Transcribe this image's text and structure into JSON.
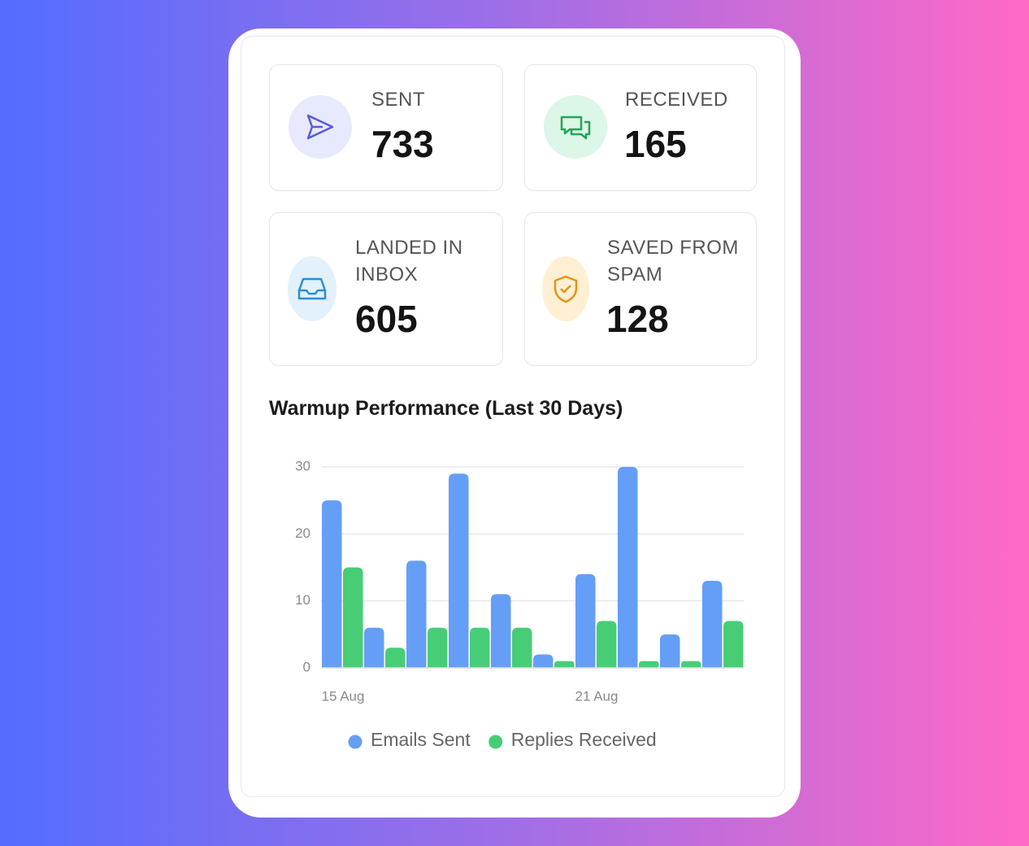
{
  "stats": [
    {
      "label": "SENT",
      "value": 733
    },
    {
      "label": "RECEIVED",
      "value": 165
    },
    {
      "label": "LANDED IN INBOX",
      "value": 605
    },
    {
      "label": "SAVED FROM SPAM",
      "value": 128
    }
  ],
  "chart_data": {
    "type": "bar",
    "title": "Warmup Performance (Last 30 Days)",
    "categories": [
      "15 Aug",
      null,
      null,
      null,
      null,
      null,
      "21 Aug",
      null,
      null,
      null
    ],
    "series": [
      {
        "name": "Emails Sent",
        "color": "#659ef6",
        "values": [
          25,
          6,
          16,
          29,
          11,
          2,
          14,
          30,
          5,
          13
        ]
      },
      {
        "name": "Replies Received",
        "color": "#47cd76",
        "values": [
          15,
          3,
          6,
          6,
          6,
          1,
          7,
          1,
          1,
          7
        ]
      }
    ],
    "ylim": [
      0,
      30
    ],
    "yticks": [
      0,
      10,
      20,
      30
    ],
    "grid": true,
    "legend": "bottom"
  }
}
